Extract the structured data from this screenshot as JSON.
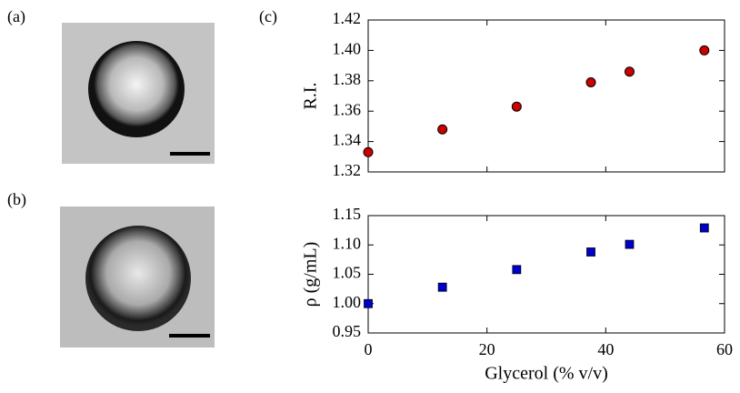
{
  "panels": {
    "a": "(a)",
    "b": "(b)",
    "c": "(c)"
  },
  "chart_data": [
    {
      "type": "scatter",
      "ylabel": "R.I.",
      "marker": "circle",
      "color": "#cc0000",
      "show_xticklabels": false,
      "x": [
        0,
        12.5,
        25,
        37.5,
        44,
        56.6
      ],
      "values": [
        1.333,
        1.348,
        1.363,
        1.379,
        1.386,
        1.4
      ],
      "xlim": [
        0,
        60
      ],
      "xticks": [
        0,
        20,
        40,
        60
      ],
      "ylim": [
        1.32,
        1.42
      ],
      "yticks": [
        1.32,
        1.34,
        1.36,
        1.38,
        {
          "value": 1.4,
          "label": "1.40"
        },
        1.42
      ]
    },
    {
      "type": "scatter",
      "ylabel": "ρ (g/mL)",
      "xlabel": "Glycerol (% v/v)",
      "marker": "square",
      "color": "#0000cc",
      "show_xticklabels": true,
      "x": [
        0,
        12.5,
        25,
        37.5,
        44,
        56.6
      ],
      "values": [
        1.0,
        1.028,
        1.058,
        1.088,
        1.101,
        1.129
      ],
      "xlim": [
        0,
        60
      ],
      "xticks": [
        0,
        20,
        40,
        60
      ],
      "ylim": [
        0.95,
        1.15
      ],
      "yticks": [
        0.95,
        {
          "value": 1,
          "label": "1.00"
        },
        1.05,
        {
          "value": 1.1,
          "label": "1.10"
        },
        1.15
      ]
    }
  ]
}
